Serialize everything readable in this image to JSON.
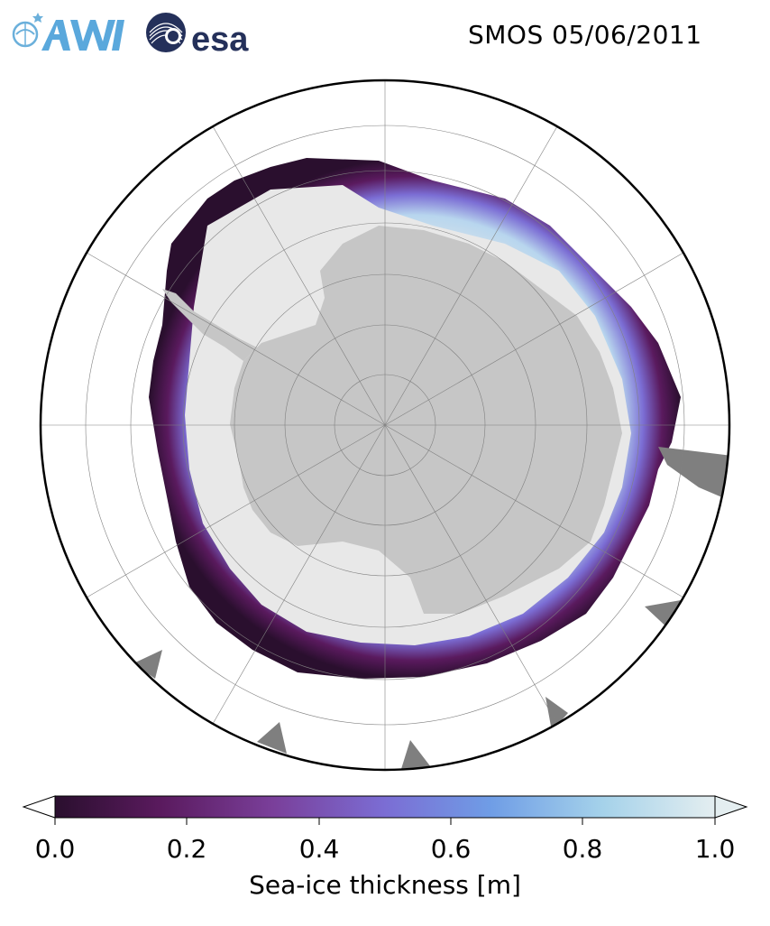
{
  "header": {
    "title": "SMOS 05/06/2011",
    "logo_left": "AWI",
    "logo_right": "esa"
  },
  "map": {
    "projection": "south-polar-stereographic",
    "land_color": "#c6c6c6",
    "ocean_color": "#ffffff",
    "thick_ice_color": "#e8e8e8",
    "mask_color": "#7f7f7f",
    "grid_color": "#808080"
  },
  "colorbar": {
    "label": "Sea-ice thickness [m]",
    "min": 0.0,
    "max": 1.0,
    "ticks": [
      "0.0",
      "0.2",
      "0.4",
      "0.6",
      "0.8",
      "1.0"
    ],
    "colormap": [
      "#2a0f2e",
      "#5a1a5e",
      "#7a3f9a",
      "#7b6dd4",
      "#6f9de6",
      "#a5d2ea",
      "#e4eef0"
    ],
    "extend": "both"
  }
}
